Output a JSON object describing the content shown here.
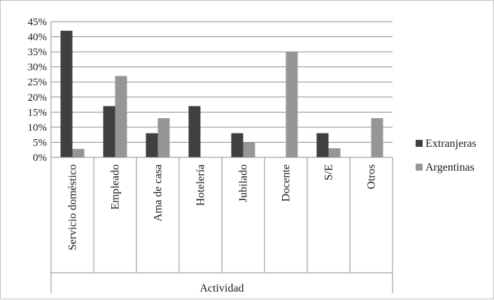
{
  "chart_data": {
    "type": "bar",
    "title": "",
    "xlabel": "Actividad",
    "ylabel": "",
    "categories": [
      "Servicio doméstico",
      "Empleado",
      "Ama de casa",
      "Hotelería",
      "Jubilado",
      "Docente",
      "S/E",
      "Otros"
    ],
    "series": [
      {
        "name": "Extranjeras",
        "values": [
          42,
          17,
          8,
          17,
          8,
          0,
          8,
          0
        ],
        "color": "#404040"
      },
      {
        "name": "Argentinas",
        "values": [
          2.8,
          27,
          13,
          0,
          5,
          35,
          3,
          13
        ],
        "color": "#969696"
      }
    ],
    "ylim": [
      0,
      45
    ],
    "yticks": [
      0,
      5,
      10,
      15,
      20,
      25,
      30,
      35,
      40,
      45
    ],
    "ytick_labels": [
      "0%",
      "5%",
      "10%",
      "15%",
      "20%",
      "25%",
      "30%",
      "35%",
      "40%",
      "45%"
    ],
    "grid": true,
    "legend_position": "right"
  }
}
